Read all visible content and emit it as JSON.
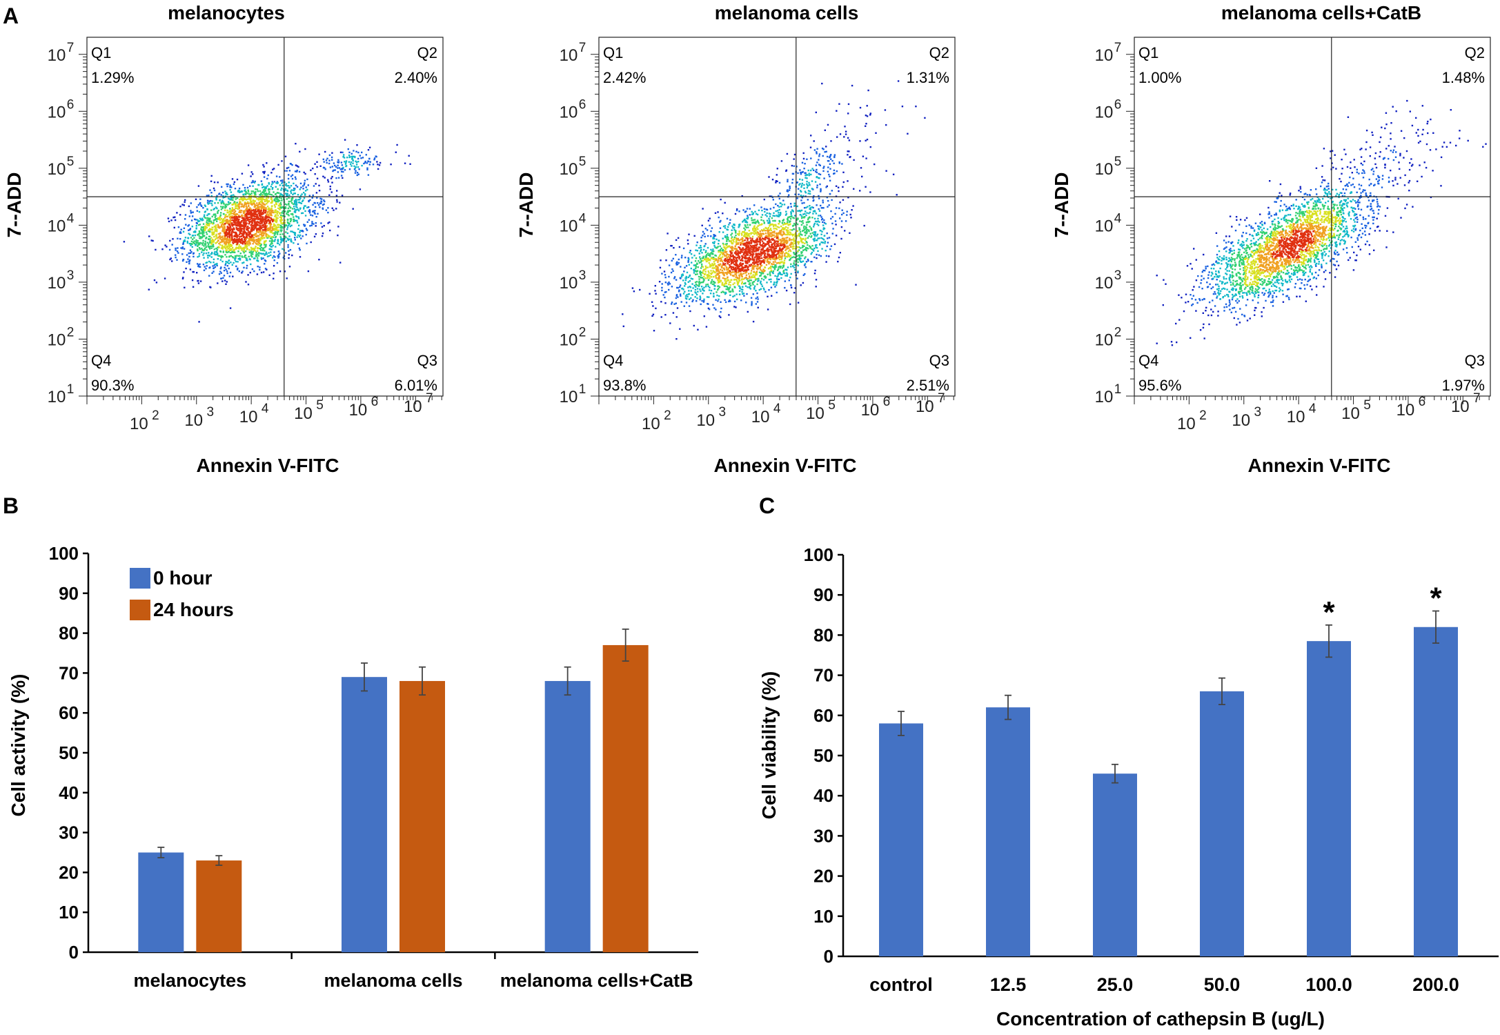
{
  "panel_letters": {
    "a": "A",
    "b": "B",
    "c": "C"
  },
  "colors": {
    "blue": "#4472C4",
    "orange": "#C55A11",
    "axis": "#000000"
  },
  "flow_tick_exponents": [
    "1",
    "2",
    "3",
    "4",
    "5",
    "6",
    "7"
  ],
  "flow_tick_base": "10",
  "chart_data": [
    {
      "type": "scatter",
      "subtype": "flow-cytometry",
      "title": "melanocytes",
      "xlabel": "Annexin V-FITC",
      "ylabel": "7--ADD",
      "x_scale": "log",
      "y_scale": "log",
      "xlim_log10": [
        1,
        7.5
      ],
      "ylim_log10": [
        1,
        7.3
      ],
      "gate_log10": {
        "x": 4.6,
        "y": 4.5
      },
      "quadrants": {
        "Q1": {
          "label": "Q1",
          "value": "1.29%"
        },
        "Q2": {
          "label": "Q2",
          "value": "2.40%"
        },
        "Q3": {
          "label": "Q3",
          "value": "6.01%"
        },
        "Q4": {
          "label": "Q4",
          "value": "90.3%"
        }
      },
      "clusters_log10": [
        {
          "cx": 3.9,
          "cy": 4.0,
          "sx": 0.55,
          "sy": 0.38,
          "rho": 0.3,
          "n": 2600
        },
        {
          "cx": 5.8,
          "cy": 5.1,
          "sx": 0.45,
          "sy": 0.12,
          "rho": 0.2,
          "n": 140
        },
        {
          "cx": 4.8,
          "cy": 4.4,
          "sx": 0.5,
          "sy": 0.35,
          "rho": 0.2,
          "n": 180
        }
      ]
    },
    {
      "type": "scatter",
      "subtype": "flow-cytometry",
      "title": "melanoma cells",
      "xlabel": "Annexin V-FITC",
      "ylabel": "7--ADD",
      "x_scale": "log",
      "y_scale": "log",
      "xlim_log10": [
        1,
        7.5
      ],
      "ylim_log10": [
        1,
        7.3
      ],
      "gate_log10": {
        "x": 4.6,
        "y": 4.5
      },
      "quadrants": {
        "Q1": {
          "label": "Q1",
          "value": "2.42%"
        },
        "Q2": {
          "label": "Q2",
          "value": "1.31%"
        },
        "Q3": {
          "label": "Q3",
          "value": "2.51%"
        },
        "Q4": {
          "label": "Q4",
          "value": "93.8%"
        }
      },
      "clusters_log10": [
        {
          "cx": 3.8,
          "cy": 3.5,
          "sx": 0.7,
          "sy": 0.42,
          "rho": 0.55,
          "n": 2600
        },
        {
          "cx": 4.9,
          "cy": 4.9,
          "sx": 0.35,
          "sy": 0.25,
          "rho": 0.3,
          "n": 170
        },
        {
          "cx": 5.6,
          "cy": 5.5,
          "sx": 0.5,
          "sy": 0.5,
          "rho": 0.2,
          "n": 60
        }
      ]
    },
    {
      "type": "scatter",
      "subtype": "flow-cytometry",
      "title": "melanoma cells+CatB",
      "xlabel": "Annexin V-FITC",
      "ylabel": "7--ADD",
      "x_scale": "log",
      "y_scale": "log",
      "xlim_log10": [
        1,
        7.5
      ],
      "ylim_log10": [
        1,
        7.3
      ],
      "gate_log10": {
        "x": 4.6,
        "y": 4.5
      },
      "quadrants": {
        "Q1": {
          "label": "Q1",
          "value": "1.00%"
        },
        "Q2": {
          "label": "Q2",
          "value": "1.48%"
        },
        "Q3": {
          "label": "Q3",
          "value": "1.97%"
        },
        "Q4": {
          "label": "Q4",
          "value": "95.6%"
        }
      },
      "clusters_log10": [
        {
          "cx": 3.8,
          "cy": 3.6,
          "sx": 0.75,
          "sy": 0.5,
          "rho": 0.7,
          "n": 2700
        },
        {
          "cx": 5.6,
          "cy": 5.2,
          "sx": 0.6,
          "sy": 0.45,
          "rho": 0.5,
          "n": 160
        }
      ]
    },
    {
      "type": "bar",
      "ylabel": "Cell activity (%)",
      "ylim": [
        0,
        100
      ],
      "yticks": [
        "0",
        "10",
        "20",
        "30",
        "40",
        "50",
        "60",
        "70",
        "80",
        "90",
        "100"
      ],
      "categories": [
        "melanocytes",
        "melanoma cells",
        "melanoma cells+CatB"
      ],
      "series": [
        {
          "name": "0 hour",
          "values": [
            25,
            69,
            68
          ],
          "errors": [
            1.3,
            3.5,
            3.5
          ]
        },
        {
          "name": "24 hours",
          "values": [
            23,
            68,
            77
          ],
          "errors": [
            1.2,
            3.5,
            4.0
          ]
        }
      ],
      "legend": "top-left"
    },
    {
      "type": "bar",
      "xlabel": "Concentration of cathepsin B (ug/L)",
      "ylabel": "Cell  viability (%)",
      "ylim": [
        0,
        100
      ],
      "yticks": [
        "0",
        "10",
        "20",
        "30",
        "40",
        "50",
        "60",
        "70",
        "80",
        "90",
        "100"
      ],
      "categories": [
        "control",
        "12.5",
        "25.0",
        "50.0",
        "100.0",
        "200.0"
      ],
      "values": [
        58,
        62,
        45.5,
        66,
        78.5,
        82
      ],
      "errors": [
        3.0,
        3.0,
        2.3,
        3.3,
        4.0,
        4.0
      ],
      "annotations": [
        "",
        "",
        "",
        "",
        "*",
        "*"
      ]
    }
  ]
}
